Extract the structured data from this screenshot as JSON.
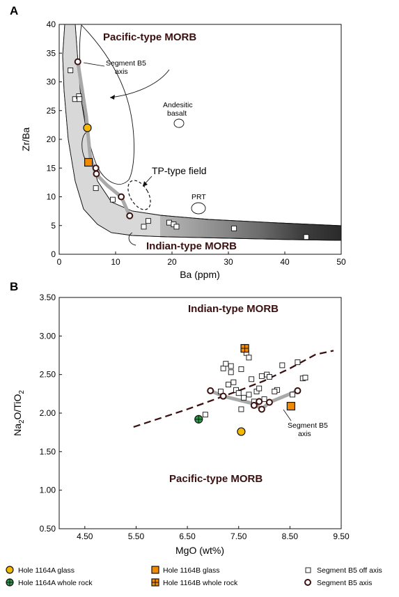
{
  "chart_data": [
    {
      "panel": "A",
      "type": "scatter",
      "xlabel": "Ba (ppm)",
      "ylabel": "Zr/Ba",
      "xlim": [
        0,
        50
      ],
      "ylim": [
        0,
        40
      ],
      "xticks": [
        "0",
        "10",
        "20",
        "30",
        "40",
        "50"
      ],
      "yticks": [
        "0",
        "5",
        "10",
        "15",
        "20",
        "25",
        "30",
        "35",
        "40"
      ],
      "annotations": {
        "pacific": "Pacific-type MORB",
        "indian": "Indian-type MORB",
        "segment_l1": "Segment B5",
        "segment_l2": "axis",
        "andesitic_l1": "Andesitic",
        "andesitic_l2": "basalt",
        "tp": "TP-type field",
        "prt": "PRT"
      },
      "series": [
        {
          "legend": "segment_off_axis",
          "x": [
            2.0,
            2.8,
            3.5,
            3.6,
            6.5,
            9.5,
            15.0,
            15.8,
            19.5,
            20.3,
            20.8,
            31.0,
            43.8
          ],
          "y": [
            32.0,
            27.0,
            27.5,
            27.0,
            11.5,
            9.5,
            4.8,
            5.8,
            5.5,
            5.2,
            4.8,
            4.5,
            3.0
          ]
        },
        {
          "legend": "segment_axis",
          "x": [
            3.3,
            6.5,
            6.6,
            11.0,
            12.5
          ],
          "y": [
            33.5,
            15.0,
            14.0,
            10.0,
            6.7
          ]
        },
        {
          "legend": "hole_1164a_glass",
          "x": [
            5.0
          ],
          "y": [
            22.0
          ]
        },
        {
          "legend": "hole_1164b_glass",
          "x": [
            5.2
          ],
          "y": [
            16.0
          ]
        }
      ],
      "axis_trend": {
        "x": [
          3.3,
          4.8,
          5.5,
          6.5,
          8.5,
          11.0,
          12.5
        ],
        "y": [
          33.5,
          24.0,
          17.0,
          14.0,
          12.0,
          10.0,
          6.7
        ]
      }
    },
    {
      "panel": "B",
      "type": "scatter",
      "xlabel": "MgO (wt%)",
      "ylabel_main": "Na",
      "ylabel_sub1": "2",
      "ylabel_mid": "O/TiO",
      "ylabel_sub2": "2",
      "xlim": [
        4.0,
        9.5
      ],
      "ylim": [
        0.5,
        3.5
      ],
      "xticks": [
        "4.50",
        "5.50",
        "6.50",
        "7.50",
        "8.50",
        "9.50"
      ],
      "yticks": [
        "0.50",
        "1.00",
        "1.50",
        "2.00",
        "2.50",
        "3.00",
        "3.50"
      ],
      "annotations": {
        "indian": "Indian-type MORB",
        "pacific": "Pacific-type MORB",
        "segment_l1": "Segment B5",
        "segment_l2": "axis"
      },
      "dashed_boundary": {
        "x": [
          5.45,
          6.0,
          6.5,
          7.0,
          7.5,
          8.0,
          8.5,
          9.0,
          9.35
        ],
        "y": [
          1.82,
          1.94,
          2.05,
          2.17,
          2.29,
          2.42,
          2.58,
          2.76,
          2.81
        ]
      },
      "series": [
        {
          "legend": "segment_off_axis",
          "x": [
            6.85,
            7.2,
            7.25,
            7.3,
            7.35,
            7.4,
            7.45,
            7.5,
            7.55,
            7.6,
            7.65,
            7.7,
            7.75,
            7.8,
            7.85,
            7.9,
            7.95,
            8.0,
            8.05,
            8.1,
            8.25,
            8.35,
            8.55,
            8.65,
            8.75,
            8.8,
            7.15,
            7.35,
            7.55,
            7.7,
            8.2
          ],
          "y": [
            1.98,
            2.58,
            2.64,
            2.37,
            2.61,
            2.4,
            2.3,
            2.26,
            2.57,
            2.2,
            2.78,
            2.72,
            2.44,
            2.15,
            2.28,
            2.32,
            2.48,
            2.18,
            2.5,
            2.47,
            2.3,
            2.62,
            2.24,
            2.66,
            2.45,
            2.46,
            2.28,
            2.53,
            2.05,
            2.24,
            2.28
          ]
        },
        {
          "legend": "segment_axis",
          "x": [
            6.95,
            7.2,
            7.8,
            7.9,
            7.95,
            8.1,
            8.65
          ],
          "y": [
            2.29,
            2.22,
            2.1,
            2.15,
            2.05,
            2.14,
            2.29
          ]
        },
        {
          "legend": "hole_1164a_glass",
          "x": [
            7.55
          ],
          "y": [
            1.76
          ]
        },
        {
          "legend": "hole_1164a_whole_rock",
          "x": [
            6.72
          ],
          "y": [
            1.92
          ]
        },
        {
          "legend": "hole_1164b_glass",
          "x": [
            8.52
          ],
          "y": [
            2.09
          ]
        },
        {
          "legend": "hole_1164b_whole_rock",
          "x": [
            7.62
          ],
          "y": [
            2.84
          ]
        }
      ],
      "axis_trend": {
        "x": [
          6.95,
          7.2,
          7.8,
          7.95,
          8.1,
          8.65
        ],
        "y": [
          2.29,
          2.22,
          2.12,
          2.05,
          2.14,
          2.29
        ]
      }
    }
  ],
  "legend": {
    "hole_1164a_glass": "Hole 1164A glass",
    "hole_1164a_whole_rock": "Hole 1164A whole rock",
    "hole_1164b_glass": "Hole 1164B glass",
    "hole_1164b_whole_rock": "Hole 1164B whole rock",
    "segment_off_axis": "Segment B5 off axis",
    "segment_axis": "Segment B5 axis"
  },
  "colors": {
    "glass_a_fill": "#f5b800",
    "whole_a_fill": "#2e9b4a",
    "glass_b_fill": "#f08a00",
    "axis_trend": "#a9a9a9",
    "region_text": "#3a1010",
    "dashed": "#3a1010"
  }
}
